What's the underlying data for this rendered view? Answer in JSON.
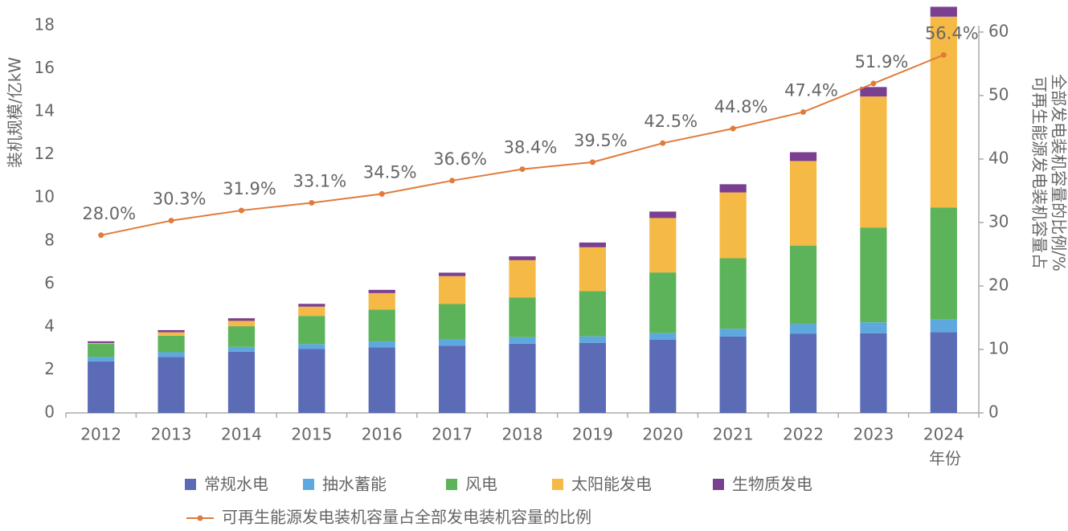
{
  "chart_data": {
    "type": "bar",
    "stacked": true,
    "y_label": "装机规模/亿kW",
    "y2_label": [
      "可再生能源发电装机容量占",
      "全部发电装机容量的比例/%"
    ],
    "x_label": "年份",
    "categories": [
      "2012",
      "2013",
      "2014",
      "2015",
      "2016",
      "2017",
      "2018",
      "2019",
      "2020",
      "2021",
      "2022",
      "2023",
      "2024"
    ],
    "series": [
      {
        "name": "常规水电",
        "color": "#5b6bb5",
        "values": [
          2.4,
          2.6,
          2.85,
          2.97,
          3.05,
          3.13,
          3.22,
          3.26,
          3.4,
          3.55,
          3.68,
          3.7,
          3.75
        ]
      },
      {
        "name": "抽水蓄能",
        "color": "#5ea8e0",
        "values": [
          0.2,
          0.22,
          0.22,
          0.23,
          0.27,
          0.29,
          0.3,
          0.3,
          0.31,
          0.36,
          0.45,
          0.51,
          0.59
        ]
      },
      {
        "name": "风电",
        "color": "#5db35a",
        "values": [
          0.61,
          0.77,
          0.96,
          1.31,
          1.48,
          1.64,
          1.84,
          2.1,
          2.82,
          3.28,
          3.65,
          4.41,
          5.21
        ]
      },
      {
        "name": "太阳能发电",
        "color": "#f5b945",
        "values": [
          0.04,
          0.16,
          0.25,
          0.43,
          0.77,
          1.3,
          1.74,
          2.04,
          2.53,
          3.06,
          3.93,
          6.09,
          8.87
        ]
      },
      {
        "name": "生物质发电",
        "color": "#7a3f91",
        "values": [
          0.08,
          0.1,
          0.12,
          0.13,
          0.15,
          0.16,
          0.18,
          0.22,
          0.3,
          0.38,
          0.41,
          0.44,
          0.46
        ]
      },
      {
        "name": "可再生能源发电装机容量占全部发电装机容量的比例",
        "color": "#e07b3c",
        "axis": "y2",
        "type": "line",
        "values": [
          28.0,
          30.3,
          31.9,
          33.1,
          34.5,
          36.6,
          38.4,
          39.5,
          42.5,
          44.8,
          47.4,
          51.9,
          56.4
        ],
        "value_labels": [
          "28.0%",
          "30.3%",
          "31.9%",
          "33.1%",
          "34.5%",
          "36.6%",
          "38.4%",
          "39.5%",
          "42.5%",
          "44.8%",
          "47.4%",
          "51.9%",
          "56.4%"
        ]
      }
    ],
    "ylim": [
      0,
      18
    ],
    "yticks": [
      0,
      2,
      4,
      6,
      8,
      10,
      12,
      14,
      16,
      18
    ],
    "y2lim": [
      0,
      61
    ],
    "y2ticks": [
      0,
      10,
      20,
      30,
      40,
      50,
      60
    ],
    "grid": false,
    "legend": "bottom"
  }
}
